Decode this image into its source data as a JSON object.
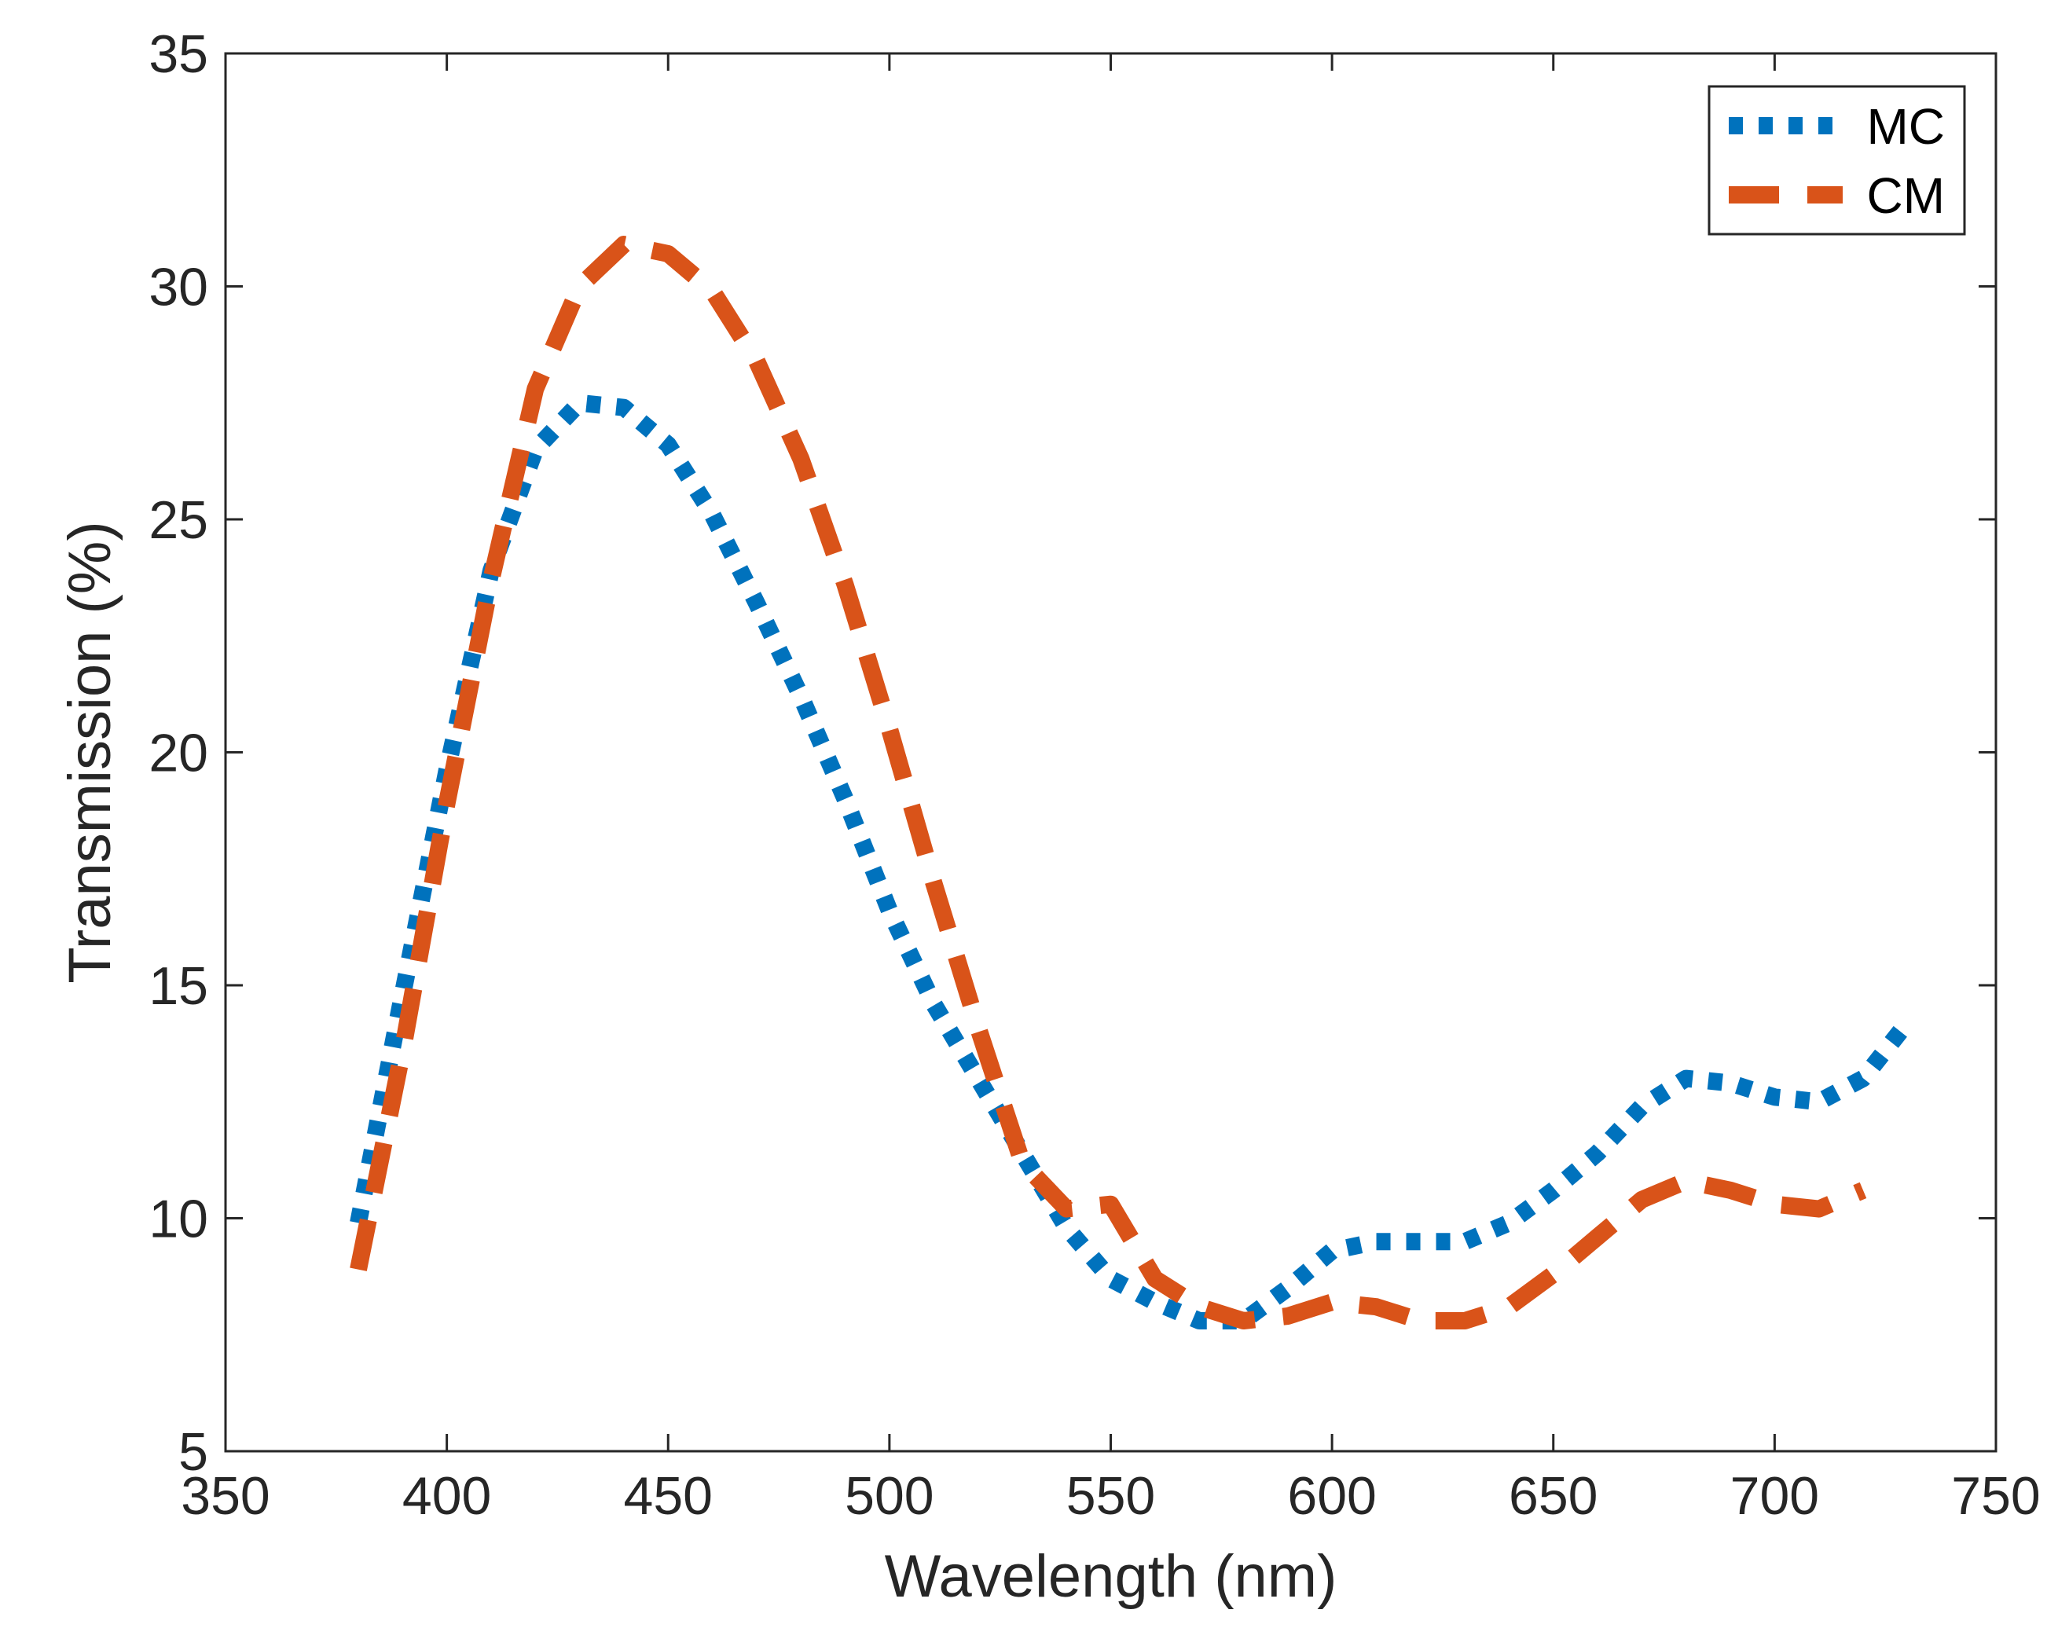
{
  "chart_data": {
    "type": "line",
    "title": "",
    "xlabel": "Wavelength (nm)",
    "ylabel": "Transmission (%)",
    "xlim": [
      350,
      750
    ],
    "ylim": [
      5,
      35
    ],
    "xticks": [
      350,
      400,
      450,
      500,
      550,
      600,
      650,
      700,
      750
    ],
    "yticks": [
      5,
      10,
      15,
      20,
      25,
      30,
      35
    ],
    "xtick_labels": [
      "350",
      "400",
      "450",
      "500",
      "550",
      "600",
      "650",
      "700",
      "750"
    ],
    "ytick_labels": [
      "5",
      "10",
      "15",
      "20",
      "25",
      "30",
      "35"
    ],
    "grid": false,
    "legend_position": "top-right",
    "series": [
      {
        "name": "MC",
        "style": "dotted",
        "color": "#0072BD",
        "x": [
          380,
          390,
          400,
          410,
          420,
          430,
          440,
          450,
          460,
          470,
          480,
          490,
          500,
          510,
          520,
          530,
          540,
          550,
          560,
          570,
          580,
          590,
          600,
          610,
          620,
          630,
          640,
          650,
          660,
          670,
          680,
          690,
          700,
          710,
          720,
          730
        ],
        "y": [
          9.9,
          14.8,
          19.6,
          23.9,
          26.5,
          27.5,
          27.4,
          26.6,
          25.1,
          23.2,
          21.2,
          19.0,
          16.6,
          14.6,
          13.0,
          11.4,
          9.8,
          8.7,
          8.2,
          7.8,
          7.8,
          8.5,
          9.3,
          9.5,
          9.5,
          9.5,
          9.9,
          10.6,
          11.4,
          12.4,
          13.0,
          12.9,
          12.6,
          12.5,
          13.0,
          14.2
        ]
      },
      {
        "name": "CM",
        "style": "dashed",
        "color": "#D95319",
        "x": [
          380,
          390,
          400,
          410,
          420,
          430,
          440,
          450,
          460,
          470,
          480,
          490,
          500,
          510,
          520,
          530,
          540,
          550,
          560,
          570,
          580,
          590,
          600,
          610,
          620,
          630,
          640,
          650,
          660,
          670,
          680,
          690,
          700,
          710,
          720
        ],
        "y": [
          8.9,
          13.6,
          18.9,
          23.7,
          27.8,
          30.0,
          30.9,
          30.7,
          29.9,
          28.4,
          26.3,
          23.6,
          20.5,
          17.2,
          14.1,
          11.2,
          10.2,
          10.3,
          8.7,
          8.1,
          7.8,
          7.9,
          8.2,
          8.1,
          7.8,
          7.8,
          8.1,
          8.8,
          9.6,
          10.4,
          10.8,
          10.6,
          10.3,
          10.2,
          10.6
        ]
      }
    ]
  }
}
